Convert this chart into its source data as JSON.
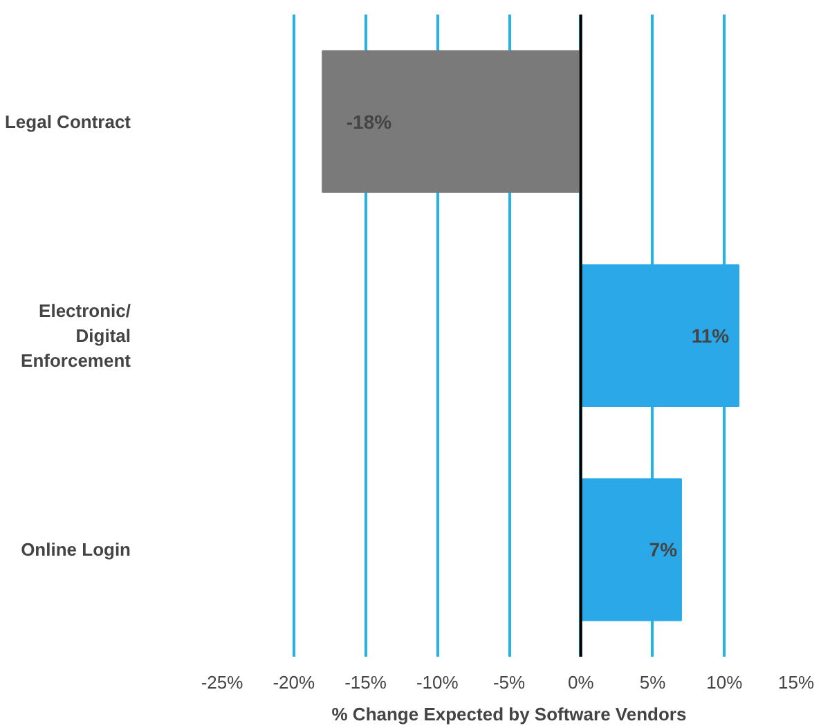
{
  "chart_data": {
    "type": "bar",
    "orientation": "horizontal",
    "xlabel": "% Change Expected by Software Vendors",
    "categories": [
      "Legal Contract",
      "Electronic/\nDigital\nEnforcement",
      "Online Login"
    ],
    "values": [
      -18,
      11,
      7
    ],
    "colors": [
      "#7a7a7a",
      "#2aa8e8",
      "#2aa8e8"
    ],
    "value_labels": [
      "-18%",
      "11%",
      "7%"
    ],
    "xlim": [
      -25,
      15
    ],
    "xticks": [
      {
        "value": -25,
        "label": "-25%"
      },
      {
        "value": -20,
        "label": "-20%"
      },
      {
        "value": -15,
        "label": "-15%"
      },
      {
        "value": -10,
        "label": "-10%"
      },
      {
        "value": -5,
        "label": "-5%"
      },
      {
        "value": 0,
        "label": "0%"
      },
      {
        "value": 5,
        "label": "5%"
      },
      {
        "value": 10,
        "label": "10%"
      },
      {
        "value": 15,
        "label": "15%"
      }
    ],
    "grid": "x"
  }
}
